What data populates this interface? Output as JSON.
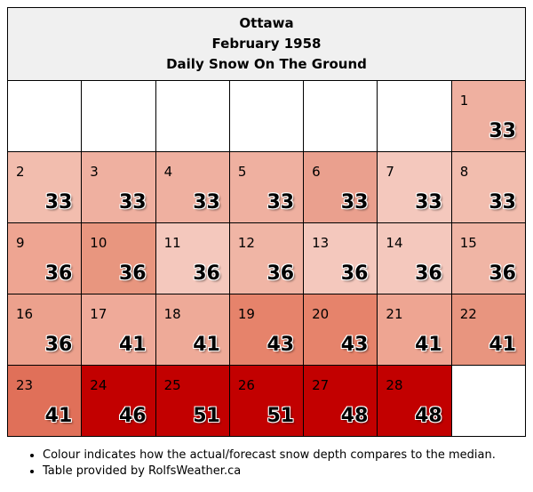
{
  "header": {
    "city": "Ottawa",
    "month": "February 1958",
    "subtitle": "Daily Snow On The Ground"
  },
  "weeks": [
    [
      null,
      null,
      null,
      null,
      null,
      null,
      {
        "day": "1",
        "value": "33",
        "color": "#efb0a0"
      }
    ],
    [
      {
        "day": "2",
        "value": "33",
        "color": "#f2bdae"
      },
      {
        "day": "3",
        "value": "33",
        "color": "#efb0a0"
      },
      {
        "day": "4",
        "value": "33",
        "color": "#efb0a0"
      },
      {
        "day": "5",
        "value": "33",
        "color": "#efb0a0"
      },
      {
        "day": "6",
        "value": "33",
        "color": "#eaa08e"
      },
      {
        "day": "7",
        "value": "33",
        "color": "#f4c8bd"
      },
      {
        "day": "8",
        "value": "33",
        "color": "#f2bdae"
      }
    ],
    [
      {
        "day": "9",
        "value": "36",
        "color": "#eea592"
      },
      {
        "day": "10",
        "value": "36",
        "color": "#e8967f"
      },
      {
        "day": "11",
        "value": "36",
        "color": "#f4c8bd"
      },
      {
        "day": "12",
        "value": "36",
        "color": "#f0b5a5"
      },
      {
        "day": "13",
        "value": "36",
        "color": "#f4c8bd"
      },
      {
        "day": "14",
        "value": "36",
        "color": "#f4c8bd"
      },
      {
        "day": "15",
        "value": "36",
        "color": "#f0b5a5"
      }
    ],
    [
      {
        "day": "16",
        "value": "36",
        "color": "#eca18d"
      },
      {
        "day": "17",
        "value": "41",
        "color": "#efaa99"
      },
      {
        "day": "18",
        "value": "41",
        "color": "#eeaa98"
      },
      {
        "day": "19",
        "value": "43",
        "color": "#e6836b"
      },
      {
        "day": "20",
        "value": "43",
        "color": "#e6836b"
      },
      {
        "day": "21",
        "value": "41",
        "color": "#eea592"
      },
      {
        "day": "22",
        "value": "41",
        "color": "#e8957f"
      }
    ],
    [
      {
        "day": "23",
        "value": "41",
        "color": "#e07059"
      },
      {
        "day": "24",
        "value": "46",
        "color": "#c20000"
      },
      {
        "day": "25",
        "value": "51",
        "color": "#c20000"
      },
      {
        "day": "26",
        "value": "51",
        "color": "#c20000"
      },
      {
        "day": "27",
        "value": "48",
        "color": "#c20000"
      },
      {
        "day": "28",
        "value": "48",
        "color": "#c20000"
      },
      null
    ]
  ],
  "notes": [
    "Colour indicates how the actual/forecast snow depth compares to the median.",
    "Table provided by RolfsWeather.ca"
  ]
}
